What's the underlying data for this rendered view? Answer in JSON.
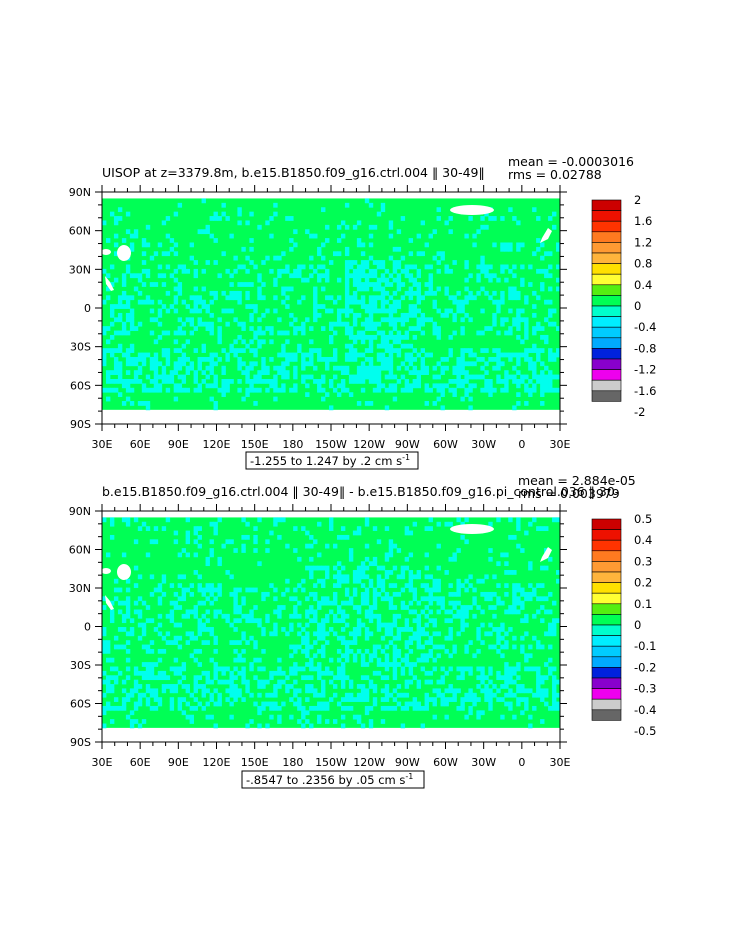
{
  "chart_data": [
    {
      "type": "heatmap",
      "title_left": "UISOP at z=3379.8m, b.e15.B1850.f09_g16.ctrl.004 ‖ 30-49‖",
      "stat_mean": "mean = -0.0003016",
      "stat_rms": "rms = 0.02788",
      "range_note": "-1.255 to 1.247 by .2 cm s",
      "range_unit_sup": "-1",
      "y_ticks": [
        "90N",
        "60N",
        "30N",
        "0",
        "30S",
        "60S",
        "90S"
      ],
      "x_ticks": [
        "30E",
        "60E",
        "90E",
        "120E",
        "150E",
        "180",
        "150W",
        "120W",
        "90W",
        "60W",
        "30W",
        "0",
        "30E"
      ],
      "colorbar_labels": [
        "2",
        "1.6",
        "1.2",
        "0.8",
        "0.4",
        "0",
        "-0.4",
        "-0.8",
        "-1.2",
        "-1.6",
        "-2"
      ],
      "dominant_value_bin": "0 to 0.2 (green) with patches of -0.2 to 0 (cyan)"
    },
    {
      "type": "heatmap",
      "title_left": "b.e15.B1850.f09_g16.ctrl.004 ‖ 30-49‖ - b.e15.B1850.f09_g16.pi_control.036 ‖ 30-",
      "stat_mean": "mean = 2.884e-05",
      "stat_rms": "rms = 0.003979",
      "range_note": "-.8547 to .2356 by .05 cm s",
      "range_unit_sup": "-1",
      "y_ticks": [
        "90N",
        "60N",
        "30N",
        "0",
        "30S",
        "60S",
        "90S"
      ],
      "x_ticks": [
        "30E",
        "60E",
        "90E",
        "120E",
        "150E",
        "180",
        "150W",
        "120W",
        "90W",
        "60W",
        "30W",
        "0",
        "30E"
      ],
      "colorbar_labels": [
        "0.5",
        "0.4",
        "0.3",
        "0.2",
        "0.1",
        "0",
        "-0.1",
        "-0.2",
        "-0.3",
        "-0.4",
        "-0.5"
      ],
      "dominant_value_bin": "0 to 0.05 (green) with patches of -0.05 to 0 (cyan)"
    }
  ],
  "palette": [
    "#cc0000",
    "#ee1100",
    "#ff3300",
    "#ff7a20",
    "#ff9a33",
    "#ffb43c",
    "#ffe000",
    "#ffff33",
    "#55ee11",
    "#00ff55",
    "#00ffcc",
    "#00eeff",
    "#00ccff",
    "#00aaff",
    "#0022dd",
    "#8800cc",
    "#ee00ee",
    "#cccccc",
    "#666666"
  ],
  "colors": {
    "green": "#00ff55",
    "cyan": "#00ffee",
    "white": "#ffffff"
  }
}
